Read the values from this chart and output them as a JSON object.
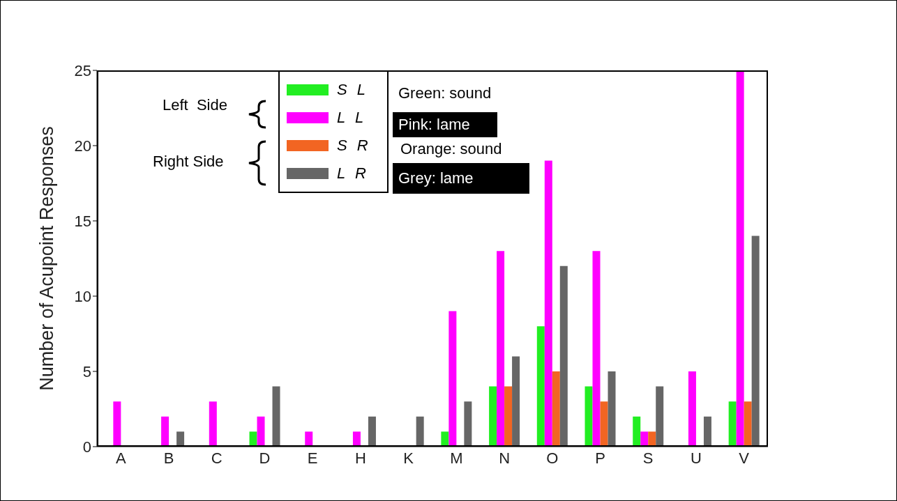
{
  "chart_data": {
    "type": "bar",
    "ylabel": "Number of Acupoint Responses",
    "categories": [
      "A",
      "B",
      "C",
      "D",
      "E",
      "H",
      "K",
      "M",
      "N",
      "O",
      "P",
      "S",
      "U",
      "V"
    ],
    "series": [
      {
        "name": "S L",
        "color": "#22ee22",
        "values": [
          0,
          0,
          0,
          1,
          0,
          0,
          0,
          1,
          4,
          8,
          4,
          2,
          0,
          3
        ]
      },
      {
        "name": "L L",
        "color": "#ff00ff",
        "values": [
          3,
          2,
          3,
          2,
          1,
          1,
          0,
          9,
          13,
          19,
          13,
          1,
          5,
          25
        ]
      },
      {
        "name": "S R",
        "color": "#f26522",
        "values": [
          0,
          0,
          0,
          0,
          0,
          0,
          0,
          0,
          4,
          5,
          3,
          1,
          0,
          3
        ]
      },
      {
        "name": "L R",
        "color": "#666666",
        "values": [
          0,
          1,
          0,
          4,
          0,
          2,
          2,
          3,
          6,
          12,
          5,
          4,
          2,
          14
        ]
      }
    ],
    "ylim": [
      0,
      25
    ],
    "yticks": [
      0,
      5,
      10,
      15,
      20,
      25
    ],
    "grid": false,
    "legend": "top left",
    "annotations": [
      "Left  Side",
      "Right Side",
      "Green: sound",
      "Pink: lame",
      "Orange: sound",
      "Grey: lame"
    ]
  }
}
